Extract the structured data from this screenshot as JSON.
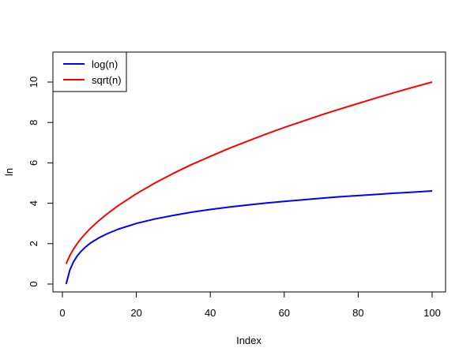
{
  "chart_data": {
    "type": "line",
    "xlabel": "Index",
    "ylabel": "ln",
    "xlim": [
      0,
      100
    ],
    "ylim": [
      0,
      11
    ],
    "x_ticks": [
      0,
      20,
      40,
      60,
      80,
      100
    ],
    "y_ticks": [
      0,
      2,
      4,
      6,
      8,
      10
    ],
    "legend_position": "top-left",
    "series": [
      {
        "name": "log(n)",
        "color": "#0000ff",
        "x": [
          1,
          2,
          3,
          4,
          5,
          6,
          7,
          8,
          10,
          12,
          15,
          20,
          25,
          30,
          35,
          40,
          45,
          50,
          55,
          60,
          65,
          70,
          75,
          80,
          85,
          90,
          95,
          100
        ],
        "values": [
          0.0,
          0.69,
          1.1,
          1.39,
          1.61,
          1.79,
          1.95,
          2.08,
          2.3,
          2.48,
          2.71,
          3.0,
          3.22,
          3.4,
          3.56,
          3.69,
          3.81,
          3.91,
          4.01,
          4.09,
          4.17,
          4.25,
          4.32,
          4.38,
          4.44,
          4.5,
          4.55,
          4.61
        ]
      },
      {
        "name": "sqrt(n)",
        "color": "#ff0000",
        "x": [
          1,
          2,
          3,
          4,
          5,
          6,
          7,
          8,
          10,
          12,
          15,
          20,
          25,
          30,
          35,
          40,
          45,
          50,
          55,
          60,
          65,
          70,
          75,
          80,
          85,
          90,
          95,
          100
        ],
        "values": [
          1.0,
          1.41,
          1.73,
          2.0,
          2.24,
          2.45,
          2.65,
          2.83,
          3.16,
          3.46,
          3.87,
          4.47,
          5.0,
          5.48,
          5.92,
          6.32,
          6.71,
          7.07,
          7.42,
          7.75,
          8.06,
          8.37,
          8.66,
          8.94,
          9.22,
          9.49,
          9.75,
          10.0
        ]
      }
    ]
  }
}
